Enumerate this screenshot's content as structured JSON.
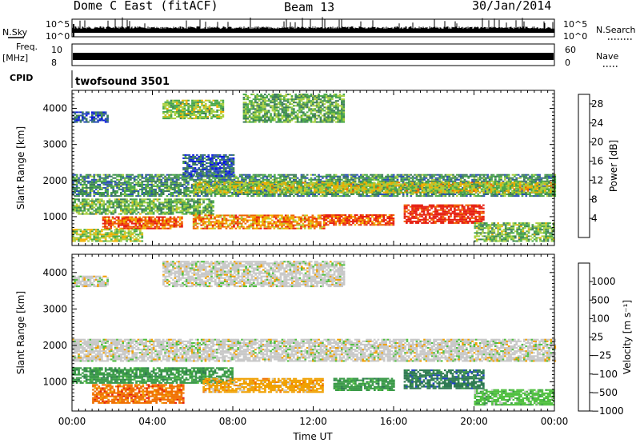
{
  "header": {
    "radar": "Dome C East (fitACF)",
    "beam": "Beam 13",
    "date": "30/Jan/2014"
  },
  "strip_labels": {
    "nsky": "N.Sky",
    "nsky_ticks": [
      "10^5",
      "10^0"
    ],
    "nsearch": "N.Search",
    "freq_line1": "Freq.",
    "freq_line2": "[MHz]",
    "freq_ticks": [
      "10",
      "8"
    ],
    "nave_ticks": [
      "60",
      "0"
    ],
    "nave": "Nave",
    "cpid": "CPID",
    "cpid_value": "twofsound 3501"
  },
  "chart_data": [
    {
      "type": "heatmap",
      "name": "power",
      "ylabel": "Slant Range [km]",
      "xlabel": "",
      "xlim": [
        0,
        24
      ],
      "ylim": [
        200,
        4500
      ],
      "x_ticks": [
        "00:00",
        "04:00",
        "08:00",
        "12:00",
        "16:00",
        "20:00",
        "00:00"
      ],
      "y_ticks": [
        1000,
        2000,
        3000,
        4000
      ],
      "colorbar_label": "Power [dB]",
      "colorbar_ticks": [
        4,
        8,
        12,
        16,
        20,
        24,
        28
      ],
      "colorbar_range": [
        0,
        30
      ],
      "colorbar_colors": [
        "#0a14e6",
        "#2950b4",
        "#3c7c5a",
        "#48a848",
        "#a8d040",
        "#f0b000",
        "#f06400",
        "#e61e10"
      ],
      "bands": [
        {
          "t0": 0,
          "t1": 24,
          "r0": 1550,
          "r1": 2150,
          "level": 2.4
        },
        {
          "t0": 6,
          "t1": 24,
          "r0": 1650,
          "r1": 1950,
          "level": 4.2
        },
        {
          "t0": 0,
          "t1": 7,
          "r0": 1050,
          "r1": 1500,
          "level": 3.2
        },
        {
          "t0": 1.5,
          "t1": 5.5,
          "r0": 650,
          "r1": 1000,
          "level": 6.3
        },
        {
          "t0": 0,
          "t1": 3.5,
          "r0": 300,
          "r1": 650,
          "level": 4
        },
        {
          "t0": 6,
          "t1": 12.5,
          "r0": 650,
          "r1": 1050,
          "level": 5.5
        },
        {
          "t0": 12.5,
          "t1": 16,
          "r0": 750,
          "r1": 1050,
          "level": 6.4
        },
        {
          "t0": 16.5,
          "t1": 20.5,
          "r0": 800,
          "r1": 1300,
          "level": 7.3
        },
        {
          "t0": 20,
          "t1": 24,
          "r0": 300,
          "r1": 800,
          "level": 3.3
        },
        {
          "t0": 4.5,
          "t1": 7.5,
          "r0": 3700,
          "r1": 4200,
          "level": 3.6
        },
        {
          "t0": 8.5,
          "t1": 13.5,
          "r0": 3600,
          "r1": 4400,
          "level": 3
        },
        {
          "t0": 0,
          "t1": 1.8,
          "r0": 3600,
          "r1": 3900,
          "level": 1.3
        },
        {
          "t0": 5.5,
          "t1": 8,
          "r0": 2100,
          "r1": 2700,
          "level": 1.3
        }
      ]
    },
    {
      "type": "heatmap",
      "name": "velocity",
      "ylabel": "Slant Range [km]",
      "xlabel": "Time UT",
      "xlim": [
        0,
        24
      ],
      "ylim": [
        200,
        4500
      ],
      "x_ticks": [
        "00:00",
        "04:00",
        "08:00",
        "12:00",
        "16:00",
        "20:00",
        "00:00"
      ],
      "y_ticks": [
        1000,
        2000,
        3000,
        4000
      ],
      "colorbar_label": "Velocity [m s⁻¹]",
      "colorbar_ticks": [
        "1000",
        "500",
        "100",
        "25",
        "−25",
        "−100",
        "−500",
        "−1000"
      ],
      "colorbar_colors": [
        "#2040c8",
        "#2f7a52",
        "#3a9a48",
        "#50c040",
        "#c8c8c8",
        "#f0a000",
        "#f07000",
        "#e61e10"
      ],
      "bands": [
        {
          "t0": 0,
          "t1": 24,
          "r0": 1550,
          "r1": 2150,
          "cat": 4
        },
        {
          "t0": 0,
          "t1": 8,
          "r0": 950,
          "r1": 1400,
          "cat": 2
        },
        {
          "t0": 1,
          "t1": 5.5,
          "r0": 400,
          "r1": 900,
          "cat": 6
        },
        {
          "t0": 6.5,
          "t1": 12.5,
          "r0": 700,
          "r1": 1100,
          "cat": 5
        },
        {
          "t0": 13,
          "t1": 16,
          "r0": 750,
          "r1": 1100,
          "cat": 2
        },
        {
          "t0": 16.5,
          "t1": 20.5,
          "r0": 800,
          "r1": 1300,
          "cat": 1
        },
        {
          "t0": 20,
          "t1": 24,
          "r0": 350,
          "r1": 800,
          "cat": 3
        },
        {
          "t0": 4.5,
          "t1": 13.5,
          "r0": 3600,
          "r1": 4300,
          "cat": 4
        },
        {
          "t0": 0,
          "t1": 1.8,
          "r0": 3600,
          "r1": 3900,
          "cat": 4
        }
      ]
    }
  ]
}
